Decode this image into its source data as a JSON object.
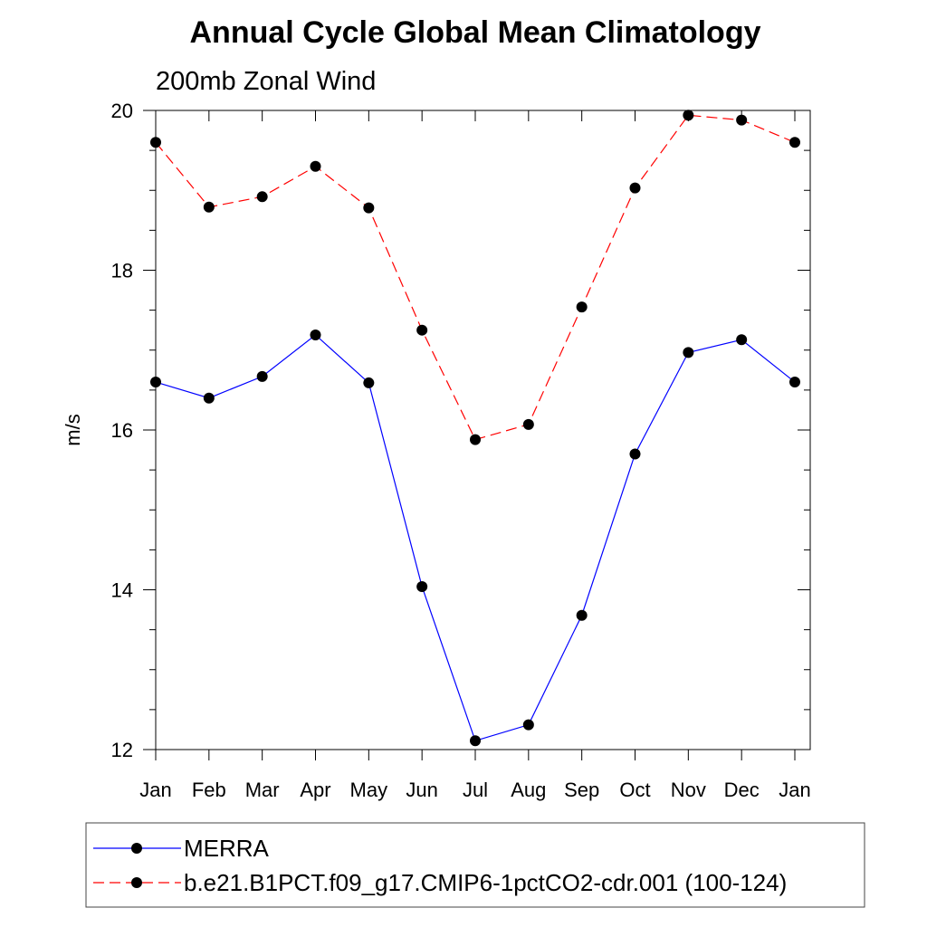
{
  "chart_data": {
    "type": "line",
    "title": "Annual Cycle Global Mean Climatology",
    "subtitle": "200mb Zonal Wind",
    "xlabel": "",
    "ylabel": "m/s",
    "categories": [
      "Jan",
      "Feb",
      "Mar",
      "Apr",
      "May",
      "Jun",
      "Jul",
      "Aug",
      "Sep",
      "Oct",
      "Nov",
      "Dec",
      "Jan"
    ],
    "ylim": [
      12,
      20
    ],
    "yticks": [
      12,
      14,
      16,
      18,
      20
    ],
    "yticks_minor_step": 0.5,
    "grid": false,
    "legend_position": "bottom",
    "series": [
      {
        "name": "MERRA",
        "color": "#0000ff",
        "line_style": "solid",
        "marker": "circle",
        "values": [
          16.6,
          16.4,
          16.67,
          17.19,
          16.59,
          14.04,
          12.11,
          12.31,
          13.68,
          15.7,
          16.97,
          17.13,
          16.6
        ]
      },
      {
        "name": "b.e21.B1PCT.f09_g17.CMIP6-1pctCO2-cdr.001 (100-124)",
        "color": "#ff0000",
        "line_style": "dashed",
        "marker": "circle",
        "values": [
          19.6,
          18.79,
          18.92,
          19.3,
          18.78,
          17.25,
          15.88,
          16.07,
          17.54,
          19.03,
          19.94,
          19.88,
          19.6
        ]
      }
    ]
  }
}
